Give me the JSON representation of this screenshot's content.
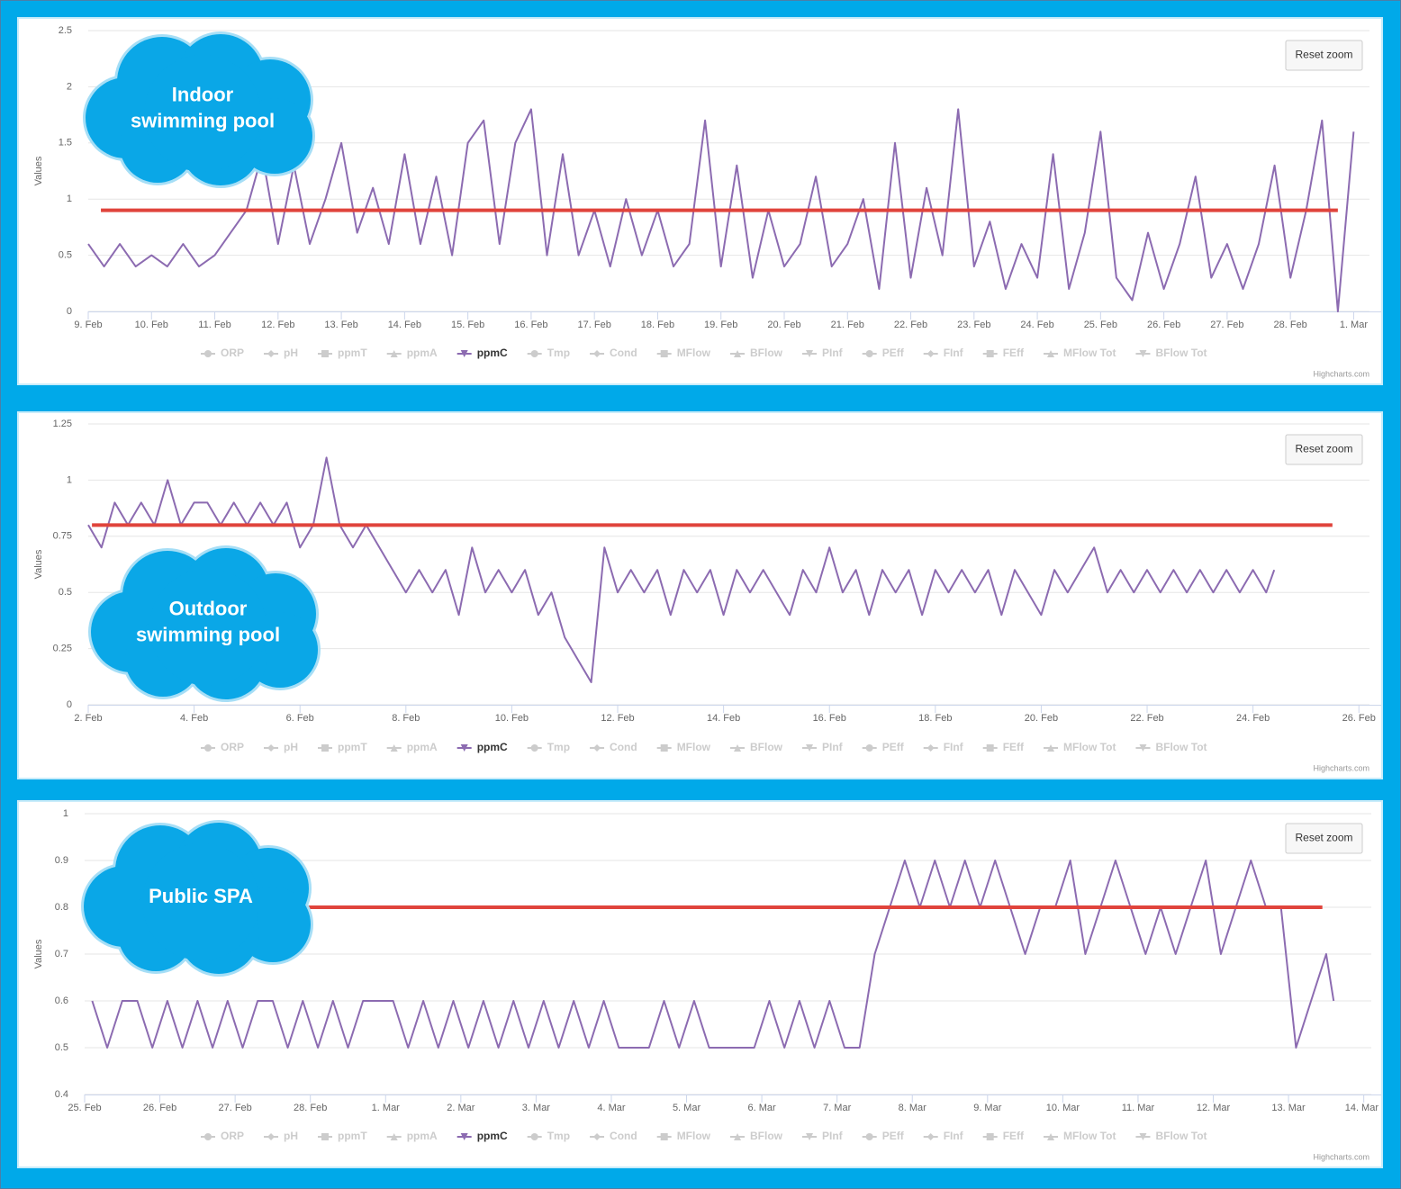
{
  "chart_data": [
    {
      "type": "line",
      "annotation": [
        "Indoor",
        "swimming pool"
      ],
      "y_title": "Values",
      "reset_zoom": "Reset zoom",
      "credits": "Highcharts.com",
      "grid": true,
      "xlim": [
        0,
        20.25
      ],
      "xticks": [
        {
          "value": 0,
          "label": "9. Feb"
        },
        {
          "value": 1,
          "label": "10. Feb"
        },
        {
          "value": 2,
          "label": "11. Feb"
        },
        {
          "value": 3,
          "label": "12. Feb"
        },
        {
          "value": 4,
          "label": "13. Feb"
        },
        {
          "value": 5,
          "label": "14. Feb"
        },
        {
          "value": 6,
          "label": "15. Feb"
        },
        {
          "value": 7,
          "label": "16. Feb"
        },
        {
          "value": 8,
          "label": "17. Feb"
        },
        {
          "value": 9,
          "label": "18. Feb"
        },
        {
          "value": 10,
          "label": "19. Feb"
        },
        {
          "value": 11,
          "label": "20. Feb"
        },
        {
          "value": 12,
          "label": "21. Feb"
        },
        {
          "value": 13,
          "label": "22. Feb"
        },
        {
          "value": 14,
          "label": "23. Feb"
        },
        {
          "value": 15,
          "label": "24. Feb"
        },
        {
          "value": 16,
          "label": "25. Feb"
        },
        {
          "value": 17,
          "label": "26. Feb"
        },
        {
          "value": 18,
          "label": "27. Feb"
        },
        {
          "value": 19,
          "label": "28. Feb"
        },
        {
          "value": 20,
          "label": "1. Mar"
        }
      ],
      "ylim": [
        0,
        2.5
      ],
      "yticks": [
        0,
        0.5,
        1,
        1.5,
        2,
        2.5
      ],
      "plot_lines": [
        {
          "value": 0.9,
          "from": 0.2,
          "to": 19.75,
          "color": "#e0443c"
        }
      ],
      "series": [
        {
          "name": "ORP",
          "symbol": "circle",
          "visible": false
        },
        {
          "name": "pH",
          "symbol": "diamond",
          "visible": false
        },
        {
          "name": "ppmT",
          "symbol": "square",
          "visible": false
        },
        {
          "name": "ppmA",
          "symbol": "triangle",
          "visible": false
        },
        {
          "name": "ppmC",
          "symbol": "triangle-down",
          "visible": true,
          "color": "#8c6bb1",
          "x": [
            0,
            0.25,
            0.5,
            0.75,
            1,
            1.25,
            1.5,
            1.75,
            2,
            2.25,
            2.5,
            2.75,
            3,
            3.25,
            3.5,
            3.75,
            4,
            4.25,
            4.5,
            4.75,
            5,
            5.25,
            5.5,
            5.75,
            6,
            6.25,
            6.5,
            6.75,
            7,
            7.25,
            7.5,
            7.75,
            8,
            8.25,
            8.5,
            8.75,
            9,
            9.25,
            9.5,
            9.75,
            10,
            10.25,
            10.5,
            10.75,
            11,
            11.25,
            11.5,
            11.75,
            12,
            12.25,
            12.5,
            12.75,
            13,
            13.25,
            13.5,
            13.75,
            14,
            14.25,
            14.5,
            14.75,
            15,
            15.25,
            15.5,
            15.75,
            16,
            16.25,
            16.5,
            16.75,
            17,
            17.25,
            17.5,
            17.75,
            18,
            18.25,
            18.5,
            18.75,
            19,
            19.25,
            19.5,
            19.75,
            20
          ],
          "values": [
            0.6,
            0.4,
            0.6,
            0.4,
            0.5,
            0.4,
            0.6,
            0.4,
            0.5,
            0.7,
            0.9,
            1.4,
            0.6,
            1.3,
            0.6,
            1.0,
            1.5,
            0.7,
            1.1,
            0.6,
            1.4,
            0.6,
            1.2,
            0.5,
            1.5,
            1.7,
            0.6,
            1.5,
            1.8,
            0.5,
            1.4,
            0.5,
            0.9,
            0.4,
            1.0,
            0.5,
            0.9,
            0.4,
            0.6,
            1.7,
            0.4,
            1.3,
            0.3,
            0.9,
            0.4,
            0.6,
            1.2,
            0.4,
            0.6,
            1.0,
            0.2,
            1.5,
            0.3,
            1.1,
            0.5,
            1.8,
            0.4,
            0.8,
            0.2,
            0.6,
            0.3,
            1.4,
            0.2,
            0.7,
            1.6,
            0.3,
            0.1,
            0.7,
            0.2,
            0.6,
            1.2,
            0.3,
            0.6,
            0.2,
            0.6,
            1.3,
            0.3,
            0.9,
            1.7,
            0,
            1.6
          ]
        },
        {
          "name": "Tmp",
          "symbol": "circle",
          "visible": false
        },
        {
          "name": "Cond",
          "symbol": "diamond",
          "visible": false
        },
        {
          "name": "MFlow",
          "symbol": "square",
          "visible": false
        },
        {
          "name": "BFlow",
          "symbol": "triangle",
          "visible": false
        },
        {
          "name": "PInf",
          "symbol": "triangle-down",
          "visible": false
        },
        {
          "name": "PEff",
          "symbol": "circle",
          "visible": false
        },
        {
          "name": "FInf",
          "symbol": "diamond",
          "visible": false
        },
        {
          "name": "FEff",
          "symbol": "square",
          "visible": false
        },
        {
          "name": "MFlow Tot",
          "symbol": "triangle",
          "visible": false
        },
        {
          "name": "BFlow Tot",
          "symbol": "triangle-down",
          "visible": false
        }
      ]
    },
    {
      "type": "line",
      "annotation": [
        "Outdoor",
        "swimming pool"
      ],
      "y_title": "Values",
      "reset_zoom": "Reset zoom",
      "credits": "Highcharts.com",
      "grid": true,
      "xlim": [
        0,
        24.2
      ],
      "xticks": [
        {
          "value": 0,
          "label": "2. Feb"
        },
        {
          "value": 2,
          "label": "4. Feb"
        },
        {
          "value": 4,
          "label": "6. Feb"
        },
        {
          "value": 6,
          "label": "8. Feb"
        },
        {
          "value": 8,
          "label": "10. Feb"
        },
        {
          "value": 10,
          "label": "12. Feb"
        },
        {
          "value": 12,
          "label": "14. Feb"
        },
        {
          "value": 14,
          "label": "16. Feb"
        },
        {
          "value": 16,
          "label": "18. Feb"
        },
        {
          "value": 18,
          "label": "20. Feb"
        },
        {
          "value": 20,
          "label": "22. Feb"
        },
        {
          "value": 22,
          "label": "24. Feb"
        },
        {
          "value": 24,
          "label": "26. Feb"
        }
      ],
      "ylim": [
        0,
        1.25
      ],
      "yticks": [
        0,
        0.25,
        0.5,
        0.75,
        1,
        1.25
      ],
      "plot_lines": [
        {
          "value": 0.8,
          "from": 0.07,
          "to": 23.5,
          "color": "#e0443c"
        }
      ],
      "series": [
        {
          "name": "ORP",
          "symbol": "circle",
          "visible": false
        },
        {
          "name": "pH",
          "symbol": "diamond",
          "visible": false
        },
        {
          "name": "ppmT",
          "symbol": "square",
          "visible": false
        },
        {
          "name": "ppmA",
          "symbol": "triangle",
          "visible": false
        },
        {
          "name": "ppmC",
          "symbol": "triangle-down",
          "visible": true,
          "color": "#8c6bb1",
          "x": [
            0,
            0.25,
            0.5,
            0.75,
            1,
            1.25,
            1.5,
            1.75,
            2,
            2.25,
            2.5,
            2.75,
            3,
            3.25,
            3.5,
            3.75,
            4,
            4.25,
            4.5,
            4.75,
            5,
            5.25,
            5.5,
            5.75,
            6,
            6.25,
            6.5,
            6.75,
            7,
            7.25,
            7.5,
            7.75,
            8,
            8.25,
            8.5,
            8.75,
            9,
            9.25,
            9.5,
            9.75,
            10,
            10.25,
            10.5,
            10.75,
            11,
            11.25,
            11.5,
            11.75,
            12,
            12.25,
            12.5,
            12.75,
            13,
            13.25,
            13.5,
            13.75,
            14,
            14.25,
            14.5,
            14.75,
            15,
            15.25,
            15.5,
            15.75,
            16,
            16.25,
            16.5,
            16.75,
            17,
            17.25,
            17.5,
            17.75,
            18,
            18.25,
            18.5,
            18.75,
            19,
            19.25,
            19.5,
            19.75,
            20,
            20.25,
            20.5,
            20.75,
            21,
            21.25,
            21.5,
            21.75,
            22,
            22.25,
            22.4
          ],
          "values": [
            0.8,
            0.7,
            0.9,
            0.8,
            0.9,
            0.8,
            1.0,
            0.8,
            0.9,
            0.9,
            0.8,
            0.9,
            0.8,
            0.9,
            0.8,
            0.9,
            0.7,
            0.8,
            1.1,
            0.8,
            0.7,
            0.8,
            0.7,
            0.6,
            0.5,
            0.6,
            0.5,
            0.6,
            0.4,
            0.7,
            0.5,
            0.6,
            0.5,
            0.6,
            0.4,
            0.5,
            0.3,
            0.2,
            0.1,
            0.7,
            0.5,
            0.6,
            0.5,
            0.6,
            0.4,
            0.6,
            0.5,
            0.6,
            0.4,
            0.6,
            0.5,
            0.6,
            0.5,
            0.4,
            0.6,
            0.5,
            0.7,
            0.5,
            0.6,
            0.4,
            0.6,
            0.5,
            0.6,
            0.4,
            0.6,
            0.5,
            0.6,
            0.5,
            0.6,
            0.4,
            0.6,
            0.5,
            0.4,
            0.6,
            0.5,
            0.6,
            0.7,
            0.5,
            0.6,
            0.5,
            0.6,
            0.5,
            0.6,
            0.5,
            0.6,
            0.5,
            0.6,
            0.5,
            0.6,
            0.5,
            0.6
          ]
        },
        {
          "name": "Tmp",
          "symbol": "circle",
          "visible": false
        },
        {
          "name": "Cond",
          "symbol": "diamond",
          "visible": false
        },
        {
          "name": "MFlow",
          "symbol": "square",
          "visible": false
        },
        {
          "name": "BFlow",
          "symbol": "triangle",
          "visible": false
        },
        {
          "name": "PInf",
          "symbol": "triangle-down",
          "visible": false
        },
        {
          "name": "PEff",
          "symbol": "circle",
          "visible": false
        },
        {
          "name": "FInf",
          "symbol": "diamond",
          "visible": false
        },
        {
          "name": "FEff",
          "symbol": "square",
          "visible": false
        },
        {
          "name": "MFlow Tot",
          "symbol": "triangle",
          "visible": false
        },
        {
          "name": "BFlow Tot",
          "symbol": "triangle-down",
          "visible": false
        }
      ]
    },
    {
      "type": "line",
      "annotation": [
        "Public SPA"
      ],
      "y_title": "Values",
      "reset_zoom": "Reset zoom",
      "credits": "Highcharts.com",
      "grid": true,
      "xlim": [
        0,
        17.1
      ],
      "xticks": [
        {
          "value": 0,
          "label": "25. Feb"
        },
        {
          "value": 1,
          "label": "26. Feb"
        },
        {
          "value": 2,
          "label": "27. Feb"
        },
        {
          "value": 3,
          "label": "28. Feb"
        },
        {
          "value": 4,
          "label": "1. Mar"
        },
        {
          "value": 5,
          "label": "2. Mar"
        },
        {
          "value": 6,
          "label": "3. Mar"
        },
        {
          "value": 7,
          "label": "4. Mar"
        },
        {
          "value": 8,
          "label": "5. Mar"
        },
        {
          "value": 9,
          "label": "6. Mar"
        },
        {
          "value": 10,
          "label": "7. Mar"
        },
        {
          "value": 11,
          "label": "8. Mar"
        },
        {
          "value": 12,
          "label": "9. Mar"
        },
        {
          "value": 13,
          "label": "10. Mar"
        },
        {
          "value": 14,
          "label": "11. Mar"
        },
        {
          "value": 15,
          "label": "12. Mar"
        },
        {
          "value": 16,
          "label": "13. Mar"
        },
        {
          "value": 17,
          "label": "14. Mar"
        }
      ],
      "ylim": [
        0.4,
        1
      ],
      "yticks": [
        0.4,
        0.5,
        0.6,
        0.7,
        0.8,
        0.9,
        1
      ],
      "plot_lines": [
        {
          "value": 0.8,
          "from": 0.1,
          "to": 16.45,
          "color": "#e0443c"
        }
      ],
      "series": [
        {
          "name": "ORP",
          "symbol": "circle",
          "visible": false
        },
        {
          "name": "pH",
          "symbol": "diamond",
          "visible": false
        },
        {
          "name": "ppmT",
          "symbol": "square",
          "visible": false
        },
        {
          "name": "ppmA",
          "symbol": "triangle",
          "visible": false
        },
        {
          "name": "ppmC",
          "symbol": "triangle-down",
          "visible": true,
          "color": "#8c6bb1",
          "x": [
            0.1,
            0.3,
            0.5,
            0.7,
            0.9,
            1.1,
            1.3,
            1.5,
            1.7,
            1.9,
            2.1,
            2.3,
            2.5,
            2.7,
            2.9,
            3.1,
            3.3,
            3.5,
            3.7,
            3.9,
            4.1,
            4.3,
            4.5,
            4.7,
            4.9,
            5.1,
            5.3,
            5.5,
            5.7,
            5.9,
            6.1,
            6.3,
            6.5,
            6.7,
            6.9,
            7.1,
            7.3,
            7.5,
            7.7,
            7.9,
            8.1,
            8.3,
            8.5,
            8.7,
            8.9,
            9.1,
            9.3,
            9.5,
            9.7,
            9.9,
            10.1,
            10.3,
            10.5,
            10.7,
            10.9,
            11.1,
            11.3,
            11.5,
            11.7,
            11.9,
            12.1,
            12.3,
            12.5,
            12.7,
            12.9,
            13.1,
            13.3,
            13.5,
            13.7,
            13.9,
            14.1,
            14.3,
            14.5,
            14.7,
            14.9,
            15.1,
            15.3,
            15.5,
            15.7,
            15.9,
            16.1,
            16.3,
            16.5,
            16.6
          ],
          "values": [
            0.6,
            0.5,
            0.6,
            0.6,
            0.5,
            0.6,
            0.5,
            0.6,
            0.5,
            0.6,
            0.5,
            0.6,
            0.6,
            0.5,
            0.6,
            0.5,
            0.6,
            0.5,
            0.6,
            0.6,
            0.6,
            0.5,
            0.6,
            0.5,
            0.6,
            0.5,
            0.6,
            0.5,
            0.6,
            0.5,
            0.6,
            0.5,
            0.6,
            0.5,
            0.6,
            0.5,
            0.5,
            0.5,
            0.6,
            0.5,
            0.6,
            0.5,
            0.5,
            0.5,
            0.5,
            0.6,
            0.5,
            0.6,
            0.5,
            0.6,
            0.5,
            0.5,
            0.7,
            0.8,
            0.9,
            0.8,
            0.9,
            0.8,
            0.9,
            0.8,
            0.9,
            0.8,
            0.7,
            0.8,
            0.8,
            0.9,
            0.7,
            0.8,
            0.9,
            0.8,
            0.7,
            0.8,
            0.7,
            0.8,
            0.9,
            0.7,
            0.8,
            0.9,
            0.8,
            0.8,
            0.5,
            0.6,
            0.7,
            0.6
          ]
        },
        {
          "name": "Tmp",
          "symbol": "circle",
          "visible": false
        },
        {
          "name": "Cond",
          "symbol": "diamond",
          "visible": false
        },
        {
          "name": "MFlow",
          "symbol": "square",
          "visible": false
        },
        {
          "name": "BFlow",
          "symbol": "triangle",
          "visible": false
        },
        {
          "name": "PInf",
          "symbol": "triangle-down",
          "visible": false
        },
        {
          "name": "PEff",
          "symbol": "circle",
          "visible": false
        },
        {
          "name": "FInf",
          "symbol": "diamond",
          "visible": false
        },
        {
          "name": "FEff",
          "symbol": "square",
          "visible": false
        },
        {
          "name": "MFlow Tot",
          "symbol": "triangle",
          "visible": false
        },
        {
          "name": "BFlow Tot",
          "symbol": "triangle-down",
          "visible": false
        }
      ]
    }
  ]
}
